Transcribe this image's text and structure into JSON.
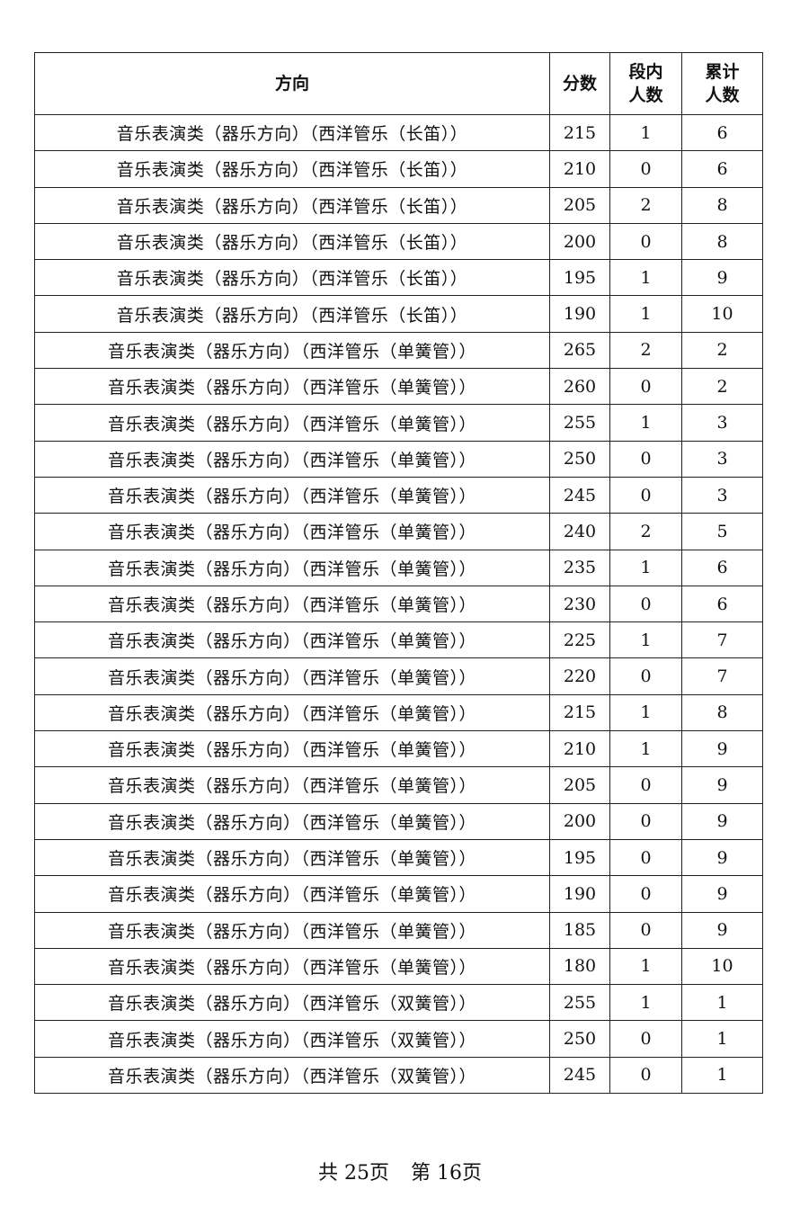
{
  "table": {
    "headers": [
      "方向",
      "分数",
      "段内\n人数",
      "累计\n人数"
    ],
    "rows": [
      [
        "音乐表演类（器乐方向）（西洋管乐（长笛））",
        "215",
        "1",
        "6"
      ],
      [
        "音乐表演类（器乐方向）（西洋管乐（长笛））",
        "210",
        "0",
        "6"
      ],
      [
        "音乐表演类（器乐方向）（西洋管乐（长笛））",
        "205",
        "2",
        "8"
      ],
      [
        "音乐表演类（器乐方向）（西洋管乐（长笛））",
        "200",
        "0",
        "8"
      ],
      [
        "音乐表演类（器乐方向）（西洋管乐（长笛））",
        "195",
        "1",
        "9"
      ],
      [
        "音乐表演类（器乐方向）（西洋管乐（长笛））",
        "190",
        "1",
        "10"
      ],
      [
        "音乐表演类（器乐方向）（西洋管乐（单簧管））",
        "265",
        "2",
        "2"
      ],
      [
        "音乐表演类（器乐方向）（西洋管乐（单簧管））",
        "260",
        "0",
        "2"
      ],
      [
        "音乐表演类（器乐方向）（西洋管乐（单簧管））",
        "255",
        "1",
        "3"
      ],
      [
        "音乐表演类（器乐方向）（西洋管乐（单簧管））",
        "250",
        "0",
        "3"
      ],
      [
        "音乐表演类（器乐方向）（西洋管乐（单簧管））",
        "245",
        "0",
        "3"
      ],
      [
        "音乐表演类（器乐方向）（西洋管乐（单簧管））",
        "240",
        "2",
        "5"
      ],
      [
        "音乐表演类（器乐方向）（西洋管乐（单簧管））",
        "235",
        "1",
        "6"
      ],
      [
        "音乐表演类（器乐方向）（西洋管乐（单簧管））",
        "230",
        "0",
        "6"
      ],
      [
        "音乐表演类（器乐方向）（西洋管乐（单簧管））",
        "225",
        "1",
        "7"
      ],
      [
        "音乐表演类（器乐方向）（西洋管乐（单簧管））",
        "220",
        "0",
        "7"
      ],
      [
        "音乐表演类（器乐方向）（西洋管乐（单簧管））",
        "215",
        "1",
        "8"
      ],
      [
        "音乐表演类（器乐方向）（西洋管乐（单簧管））",
        "210",
        "1",
        "9"
      ],
      [
        "音乐表演类（器乐方向）（西洋管乐（单簧管））",
        "205",
        "0",
        "9"
      ],
      [
        "音乐表演类（器乐方向）（西洋管乐（单簧管））",
        "200",
        "0",
        "9"
      ],
      [
        "音乐表演类（器乐方向）（西洋管乐（单簧管））",
        "195",
        "0",
        "9"
      ],
      [
        "音乐表演类（器乐方向）（西洋管乐（单簧管））",
        "190",
        "0",
        "9"
      ],
      [
        "音乐表演类（器乐方向）（西洋管乐（单簧管））",
        "185",
        "0",
        "9"
      ],
      [
        "音乐表演类（器乐方向）（西洋管乐（单簧管））",
        "180",
        "1",
        "10"
      ],
      [
        "音乐表演类（器乐方向）（西洋管乐（双簧管））",
        "255",
        "1",
        "1"
      ],
      [
        "音乐表演类（器乐方向）（西洋管乐（双簧管））",
        "250",
        "0",
        "1"
      ],
      [
        "音乐表演类（器乐方向）（西洋管乐（双簧管））",
        "245",
        "0",
        "1"
      ]
    ]
  },
  "footer": {
    "total_pages": "共 25页",
    "current_page": "第 16页"
  }
}
